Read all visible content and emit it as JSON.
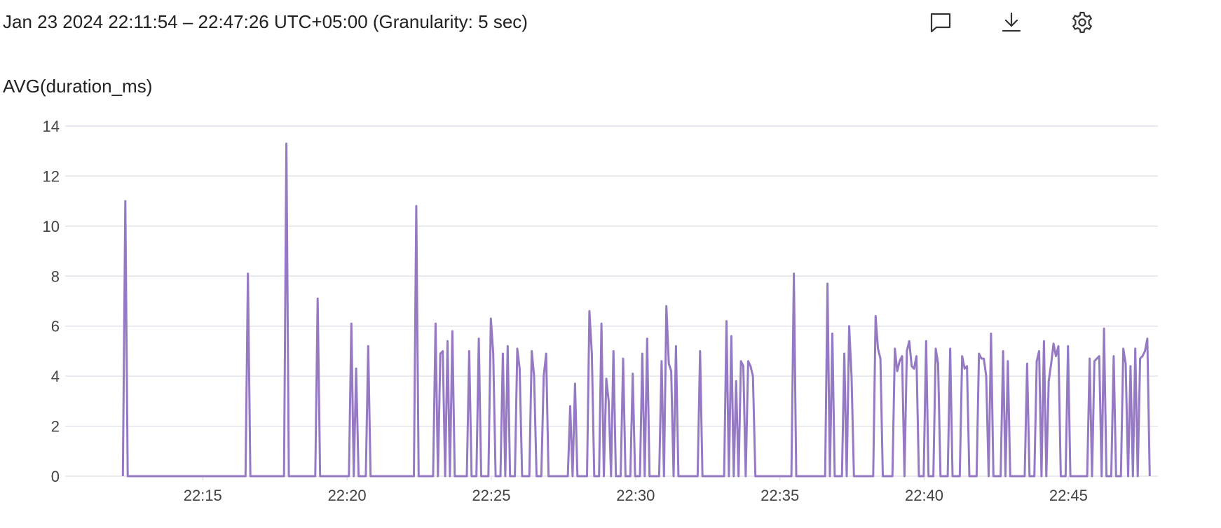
{
  "header": {
    "time_range": "Jan 23 2024 22:11:54 – 22:47:26 UTC+05:00 (Granularity: 5 sec)",
    "actions": [
      {
        "icon": "comment-icon"
      },
      {
        "icon": "download-icon"
      },
      {
        "icon": "gear-icon"
      }
    ]
  },
  "colors": {
    "series": "#9579c3",
    "grid": "#e3e2ea",
    "tick_label": "#444444"
  },
  "chart_data": {
    "type": "line",
    "title": "AVG(duration_ms)",
    "xlabel": "",
    "ylabel": "",
    "ylim": [
      0,
      14
    ],
    "yticks": [
      0,
      2,
      4,
      6,
      8,
      10,
      12,
      14
    ],
    "y_tick_labels": [
      "0",
      "2",
      "4",
      "6",
      "8",
      "10",
      "12",
      "14"
    ],
    "xlim": [
      "22:11:54",
      "22:47:26"
    ],
    "xticks": [
      "22:15",
      "22:20",
      "22:25",
      "22:30",
      "22:35",
      "22:40",
      "22:45"
    ],
    "grid": true,
    "legend": "none",
    "series": [
      {
        "points": [
          [
            "22:12:14",
            0
          ],
          [
            "22:12:19",
            11.0
          ],
          [
            "22:12:24",
            0
          ],
          [
            "22:16:29",
            0
          ],
          [
            "22:16:34",
            8.1
          ],
          [
            "22:16:39",
            0
          ],
          [
            "22:17:49",
            0
          ],
          [
            "22:17:54",
            13.3
          ],
          [
            "22:17:59",
            0
          ],
          [
            "22:18:54",
            0
          ],
          [
            "22:18:59",
            7.1
          ],
          [
            "22:19:04",
            0
          ],
          [
            "22:20:04",
            0
          ],
          [
            "22:20:09",
            6.1
          ],
          [
            "22:20:14",
            0
          ],
          [
            "22:20:19",
            4.3
          ],
          [
            "22:20:24",
            0
          ],
          [
            "22:20:39",
            0
          ],
          [
            "22:20:44",
            5.2
          ],
          [
            "22:20:49",
            0
          ],
          [
            "22:22:19",
            0
          ],
          [
            "22:22:24",
            10.8
          ],
          [
            "22:22:29",
            0
          ],
          [
            "22:22:59",
            0
          ],
          [
            "22:23:04",
            6.1
          ],
          [
            "22:23:09",
            0
          ],
          [
            "22:23:14",
            4.9
          ],
          [
            "22:23:19",
            5.0
          ],
          [
            "22:23:24",
            0
          ],
          [
            "22:23:29",
            5.4
          ],
          [
            "22:23:34",
            0
          ],
          [
            "22:23:39",
            5.8
          ],
          [
            "22:23:44",
            0
          ],
          [
            "22:24:09",
            0
          ],
          [
            "22:24:14",
            5.0
          ],
          [
            "22:24:19",
            0
          ],
          [
            "22:24:29",
            0
          ],
          [
            "22:24:34",
            5.5
          ],
          [
            "22:24:39",
            0
          ],
          [
            "22:24:54",
            0
          ],
          [
            "22:24:59",
            6.3
          ],
          [
            "22:25:04",
            4.9
          ],
          [
            "22:25:09",
            0
          ],
          [
            "22:25:19",
            0
          ],
          [
            "22:25:24",
            4.9
          ],
          [
            "22:25:29",
            0
          ],
          [
            "22:25:34",
            5.2
          ],
          [
            "22:25:39",
            0
          ],
          [
            "22:25:49",
            0
          ],
          [
            "22:25:54",
            5.1
          ],
          [
            "22:25:59",
            4.3
          ],
          [
            "22:26:04",
            0
          ],
          [
            "22:26:19",
            0
          ],
          [
            "22:26:24",
            5.0
          ],
          [
            "22:26:29",
            4.0
          ],
          [
            "22:26:34",
            0
          ],
          [
            "22:26:44",
            0
          ],
          [
            "22:26:49",
            4.0
          ],
          [
            "22:26:54",
            4.9
          ],
          [
            "22:26:59",
            0
          ],
          [
            "22:27:39",
            0
          ],
          [
            "22:27:44",
            2.8
          ],
          [
            "22:27:49",
            0
          ],
          [
            "22:27:54",
            3.7
          ],
          [
            "22:27:59",
            0
          ],
          [
            "22:28:19",
            0
          ],
          [
            "22:28:24",
            6.6
          ],
          [
            "22:28:29",
            4.9
          ],
          [
            "22:28:34",
            0
          ],
          [
            "22:28:44",
            0
          ],
          [
            "22:28:49",
            6.1
          ],
          [
            "22:28:54",
            0
          ],
          [
            "22:28:59",
            3.9
          ],
          [
            "22:29:04",
            3.0
          ],
          [
            "22:29:09",
            0
          ],
          [
            "22:29:14",
            5.0
          ],
          [
            "22:29:19",
            0
          ],
          [
            "22:29:29",
            0
          ],
          [
            "22:29:34",
            4.7
          ],
          [
            "22:29:39",
            0
          ],
          [
            "22:29:49",
            0
          ],
          [
            "22:29:54",
            4.1
          ],
          [
            "22:29:59",
            0
          ],
          [
            "22:30:09",
            0
          ],
          [
            "22:30:14",
            4.9
          ],
          [
            "22:30:19",
            0
          ],
          [
            "22:30:24",
            5.5
          ],
          [
            "22:30:29",
            0
          ],
          [
            "22:30:49",
            0
          ],
          [
            "22:30:54",
            4.6
          ],
          [
            "22:30:59",
            0
          ],
          [
            "22:31:04",
            6.8
          ],
          [
            "22:31:09",
            4.5
          ],
          [
            "22:31:14",
            4.2
          ],
          [
            "22:31:19",
            0
          ],
          [
            "22:31:24",
            5.2
          ],
          [
            "22:31:29",
            0
          ],
          [
            "22:32:09",
            0
          ],
          [
            "22:32:14",
            5.0
          ],
          [
            "22:32:19",
            0
          ],
          [
            "22:33:04",
            0
          ],
          [
            "22:33:09",
            6.2
          ],
          [
            "22:33:14",
            0
          ],
          [
            "22:33:19",
            5.6
          ],
          [
            "22:33:24",
            0
          ],
          [
            "22:33:29",
            3.8
          ],
          [
            "22:33:34",
            0
          ],
          [
            "22:33:39",
            4.6
          ],
          [
            "22:33:44",
            4.4
          ],
          [
            "22:33:49",
            0
          ],
          [
            "22:33:54",
            4.6
          ],
          [
            "22:33:59",
            4.4
          ],
          [
            "22:34:04",
            4.0
          ],
          [
            "22:34:09",
            0
          ],
          [
            "22:35:24",
            0
          ],
          [
            "22:35:29",
            8.1
          ],
          [
            "22:35:34",
            0
          ],
          [
            "22:36:34",
            0
          ],
          [
            "22:36:39",
            7.7
          ],
          [
            "22:36:44",
            0
          ],
          [
            "22:36:49",
            5.7
          ],
          [
            "22:36:54",
            0
          ],
          [
            "22:37:09",
            0
          ],
          [
            "22:37:14",
            4.9
          ],
          [
            "22:37:19",
            0
          ],
          [
            "22:37:24",
            6.0
          ],
          [
            "22:37:29",
            4.0
          ],
          [
            "22:37:34",
            0
          ],
          [
            "22:38:14",
            0
          ],
          [
            "22:38:19",
            6.4
          ],
          [
            "22:38:24",
            5.1
          ],
          [
            "22:38:29",
            4.7
          ],
          [
            "22:38:34",
            0
          ],
          [
            "22:38:54",
            0
          ],
          [
            "22:38:59",
            5.1
          ],
          [
            "22:39:04",
            4.2
          ],
          [
            "22:39:09",
            4.6
          ],
          [
            "22:39:14",
            4.8
          ],
          [
            "22:39:19",
            0
          ],
          [
            "22:39:24",
            5.0
          ],
          [
            "22:39:29",
            5.4
          ],
          [
            "22:39:34",
            4.4
          ],
          [
            "22:39:39",
            4.3
          ],
          [
            "22:39:44",
            4.8
          ],
          [
            "22:39:49",
            0
          ],
          [
            "22:39:59",
            0
          ],
          [
            "22:40:04",
            5.4
          ],
          [
            "22:40:09",
            0
          ],
          [
            "22:40:19",
            0
          ],
          [
            "22:40:24",
            5.1
          ],
          [
            "22:40:29",
            4.5
          ],
          [
            "22:40:34",
            0
          ],
          [
            "22:40:49",
            0
          ],
          [
            "22:40:54",
            5.1
          ],
          [
            "22:40:59",
            0
          ],
          [
            "22:41:14",
            0
          ],
          [
            "22:41:19",
            4.8
          ],
          [
            "22:41:24",
            4.3
          ],
          [
            "22:41:29",
            4.4
          ],
          [
            "22:41:34",
            0
          ],
          [
            "22:41:49",
            0
          ],
          [
            "22:41:54",
            4.9
          ],
          [
            "22:41:59",
            4.7
          ],
          [
            "22:42:04",
            4.7
          ],
          [
            "22:42:09",
            4.0
          ],
          [
            "22:42:14",
            0
          ],
          [
            "22:42:19",
            5.7
          ],
          [
            "22:42:24",
            0
          ],
          [
            "22:42:39",
            0
          ],
          [
            "22:42:44",
            5.0
          ],
          [
            "22:42:49",
            0
          ],
          [
            "22:42:54",
            4.6
          ],
          [
            "22:42:59",
            0
          ],
          [
            "22:43:29",
            0
          ],
          [
            "22:43:34",
            4.5
          ],
          [
            "22:43:39",
            0
          ],
          [
            "22:43:49",
            0
          ],
          [
            "22:43:54",
            4.6
          ],
          [
            "22:43:59",
            5.0
          ],
          [
            "22:44:04",
            0
          ],
          [
            "22:44:09",
            5.4
          ],
          [
            "22:44:14",
            0
          ],
          [
            "22:44:19",
            3.8
          ],
          [
            "22:44:24",
            4.5
          ],
          [
            "22:44:29",
            5.3
          ],
          [
            "22:44:34",
            4.8
          ],
          [
            "22:44:39",
            5.2
          ],
          [
            "22:44:44",
            0
          ],
          [
            "22:44:54",
            0
          ],
          [
            "22:44:59",
            5.2
          ],
          [
            "22:45:04",
            0
          ],
          [
            "22:45:39",
            0
          ],
          [
            "22:45:44",
            4.7
          ],
          [
            "22:45:49",
            0
          ],
          [
            "22:45:54",
            4.6
          ],
          [
            "22:45:59",
            4.7
          ],
          [
            "22:46:04",
            4.8
          ],
          [
            "22:46:09",
            0
          ],
          [
            "22:46:14",
            5.9
          ],
          [
            "22:46:19",
            0
          ],
          [
            "22:46:29",
            0
          ],
          [
            "22:46:34",
            4.8
          ],
          [
            "22:46:39",
            0
          ],
          [
            "22:46:49",
            0
          ],
          [
            "22:46:54",
            5.1
          ],
          [
            "22:46:59",
            4.5
          ],
          [
            "22:47:04",
            0
          ],
          [
            "22:47:09",
            4.4
          ],
          [
            "22:47:14",
            0
          ],
          [
            "22:47:19",
            5.1
          ],
          [
            "22:47:24",
            0
          ],
          [
            "22:47:29",
            4.7
          ],
          [
            "22:47:34",
            4.8
          ],
          [
            "22:47:39",
            5.0
          ],
          [
            "22:47:44",
            5.5
          ],
          [
            "22:47:49",
            0
          ]
        ]
      }
    ]
  }
}
